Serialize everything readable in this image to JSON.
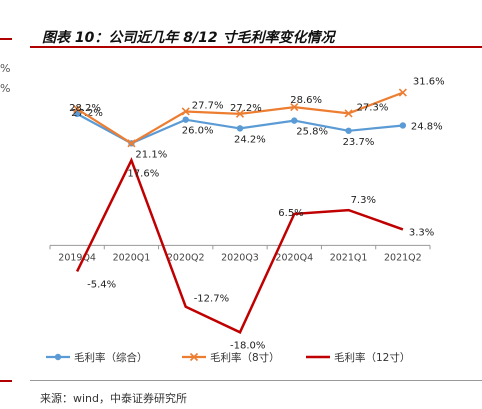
{
  "page": {
    "title": "图表 10：公司近几年 8/12 寸毛利率变化情况",
    "source": "来源：wind，中泰证券研究所",
    "left_fragments": [
      "%",
      "%"
    ]
  },
  "chart_data": {
    "type": "line",
    "title": "",
    "xlabel": "",
    "ylabel": "",
    "categories": [
      "2019Q4",
      "2020Q1",
      "2020Q2",
      "2020Q3",
      "2020Q4",
      "2021Q1",
      "2021Q2"
    ],
    "ylim": [
      -20,
      40
    ],
    "grid": false,
    "legend_position": "bottom",
    "series": [
      {
        "name": "毛利率（综合）",
        "color": "#5b9bd5",
        "marker": "circle",
        "values": [
          27.2,
          21.1,
          26.0,
          24.2,
          25.8,
          23.7,
          24.8
        ],
        "labels": [
          "27.2%",
          "21.1%",
          "26.0%",
          "24.2%",
          "25.8%",
          "23.7%",
          "24.8%"
        ]
      },
      {
        "name": "毛利率（8寸）",
        "color": "#ed7d31",
        "marker": "x",
        "values": [
          28.2,
          21.1,
          27.7,
          27.2,
          28.6,
          27.3,
          31.6
        ],
        "labels": [
          "28.2%",
          "",
          "27.7%",
          "27.2%",
          "28.6%",
          "27.3%",
          "31.6%"
        ]
      },
      {
        "name": "毛利率（12寸）",
        "color": "#c00000",
        "marker": "none",
        "values": [
          -5.4,
          17.6,
          -12.7,
          -18.0,
          6.5,
          7.3,
          3.3
        ],
        "labels": [
          "-5.4%",
          "17.6%",
          "-12.7%",
          "-18.0%",
          "6.5%",
          "7.3%",
          "3.3%"
        ]
      }
    ]
  }
}
